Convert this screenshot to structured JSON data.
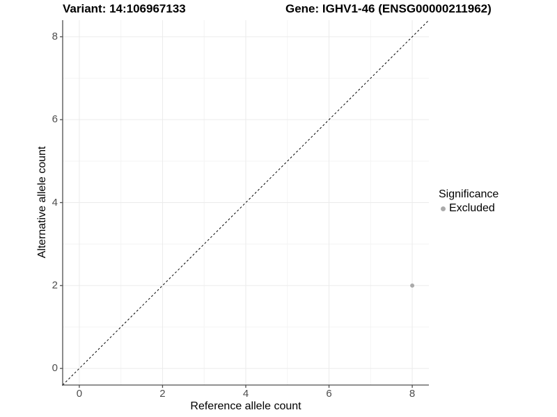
{
  "titles": {
    "variant": "Variant: 14:106967133",
    "gene": "Gene: IGHV1-46 (ENSG00000211962)"
  },
  "chart_data": {
    "type": "scatter",
    "xlabel": "Reference allele count",
    "ylabel": "Alternative allele count",
    "xlim": [
      -0.4,
      8.4
    ],
    "ylim": [
      -0.4,
      8.4
    ],
    "xticks": [
      0,
      2,
      4,
      6,
      8
    ],
    "yticks": [
      0,
      2,
      4,
      6,
      8
    ],
    "xminor": [
      1,
      3,
      5,
      7
    ],
    "yminor": [
      1,
      3,
      5,
      7
    ],
    "grid": "on",
    "reference_line": {
      "type": "identity",
      "style": "dashed",
      "x1": -0.4,
      "y1": -0.4,
      "x2": 8.4,
      "y2": 8.4
    },
    "series": [
      {
        "name": "Excluded",
        "color": "#aaaaaa",
        "point_radius": 3,
        "points": [
          {
            "x": 8,
            "y": 2
          }
        ]
      }
    ],
    "legend": {
      "title": "Significance",
      "position": "right",
      "entries": [
        {
          "label": "Excluded",
          "color": "#aaaaaa"
        }
      ]
    }
  },
  "colors": {
    "background": "#ffffff",
    "grid_major": "#ebebeb",
    "grid_minor": "#f4f4f4",
    "axis_line": "#4d4d4d",
    "tick_mark": "#4d4d4d",
    "tick_label": "#4d4d4d",
    "title_text": "#000000",
    "dashed_line": "#000000",
    "point": "#aaaaaa"
  }
}
